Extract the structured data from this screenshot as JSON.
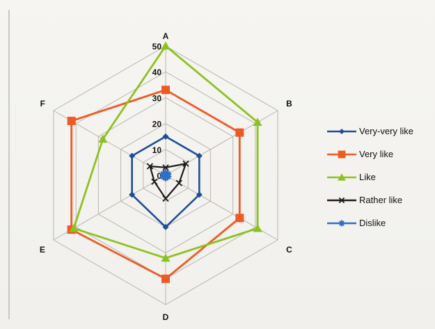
{
  "chart_data": {
    "type": "radar",
    "categories": [
      "A",
      "B",
      "C",
      "D",
      "E",
      "F"
    ],
    "rlim": [
      0,
      50
    ],
    "ticks": [
      "0",
      "10",
      "20",
      "30",
      "40",
      "50"
    ],
    "grid": true,
    "legend_position": "right",
    "series": [
      {
        "name": "Very-very like",
        "color": "#1f4e96",
        "marker": "diamond",
        "values": [
          15,
          15,
          15,
          20,
          15,
          15
        ]
      },
      {
        "name": "Very like",
        "color": "#ef5a24",
        "marker": "square",
        "values": [
          33,
          33,
          33,
          40,
          42,
          42
        ]
      },
      {
        "name": "Like",
        "color": "#8cc21f",
        "marker": "triangle",
        "values": [
          50,
          41,
          41,
          32,
          41,
          28
        ]
      },
      {
        "name": "Rather like",
        "color": "#1a1a1a",
        "marker": "cross",
        "values": [
          3,
          9,
          6,
          9,
          5,
          7
        ]
      },
      {
        "name": "Dislike",
        "color": "#2f6fc4",
        "marker": "star",
        "values": [
          1,
          1,
          1,
          1,
          1,
          1
        ]
      }
    ]
  }
}
